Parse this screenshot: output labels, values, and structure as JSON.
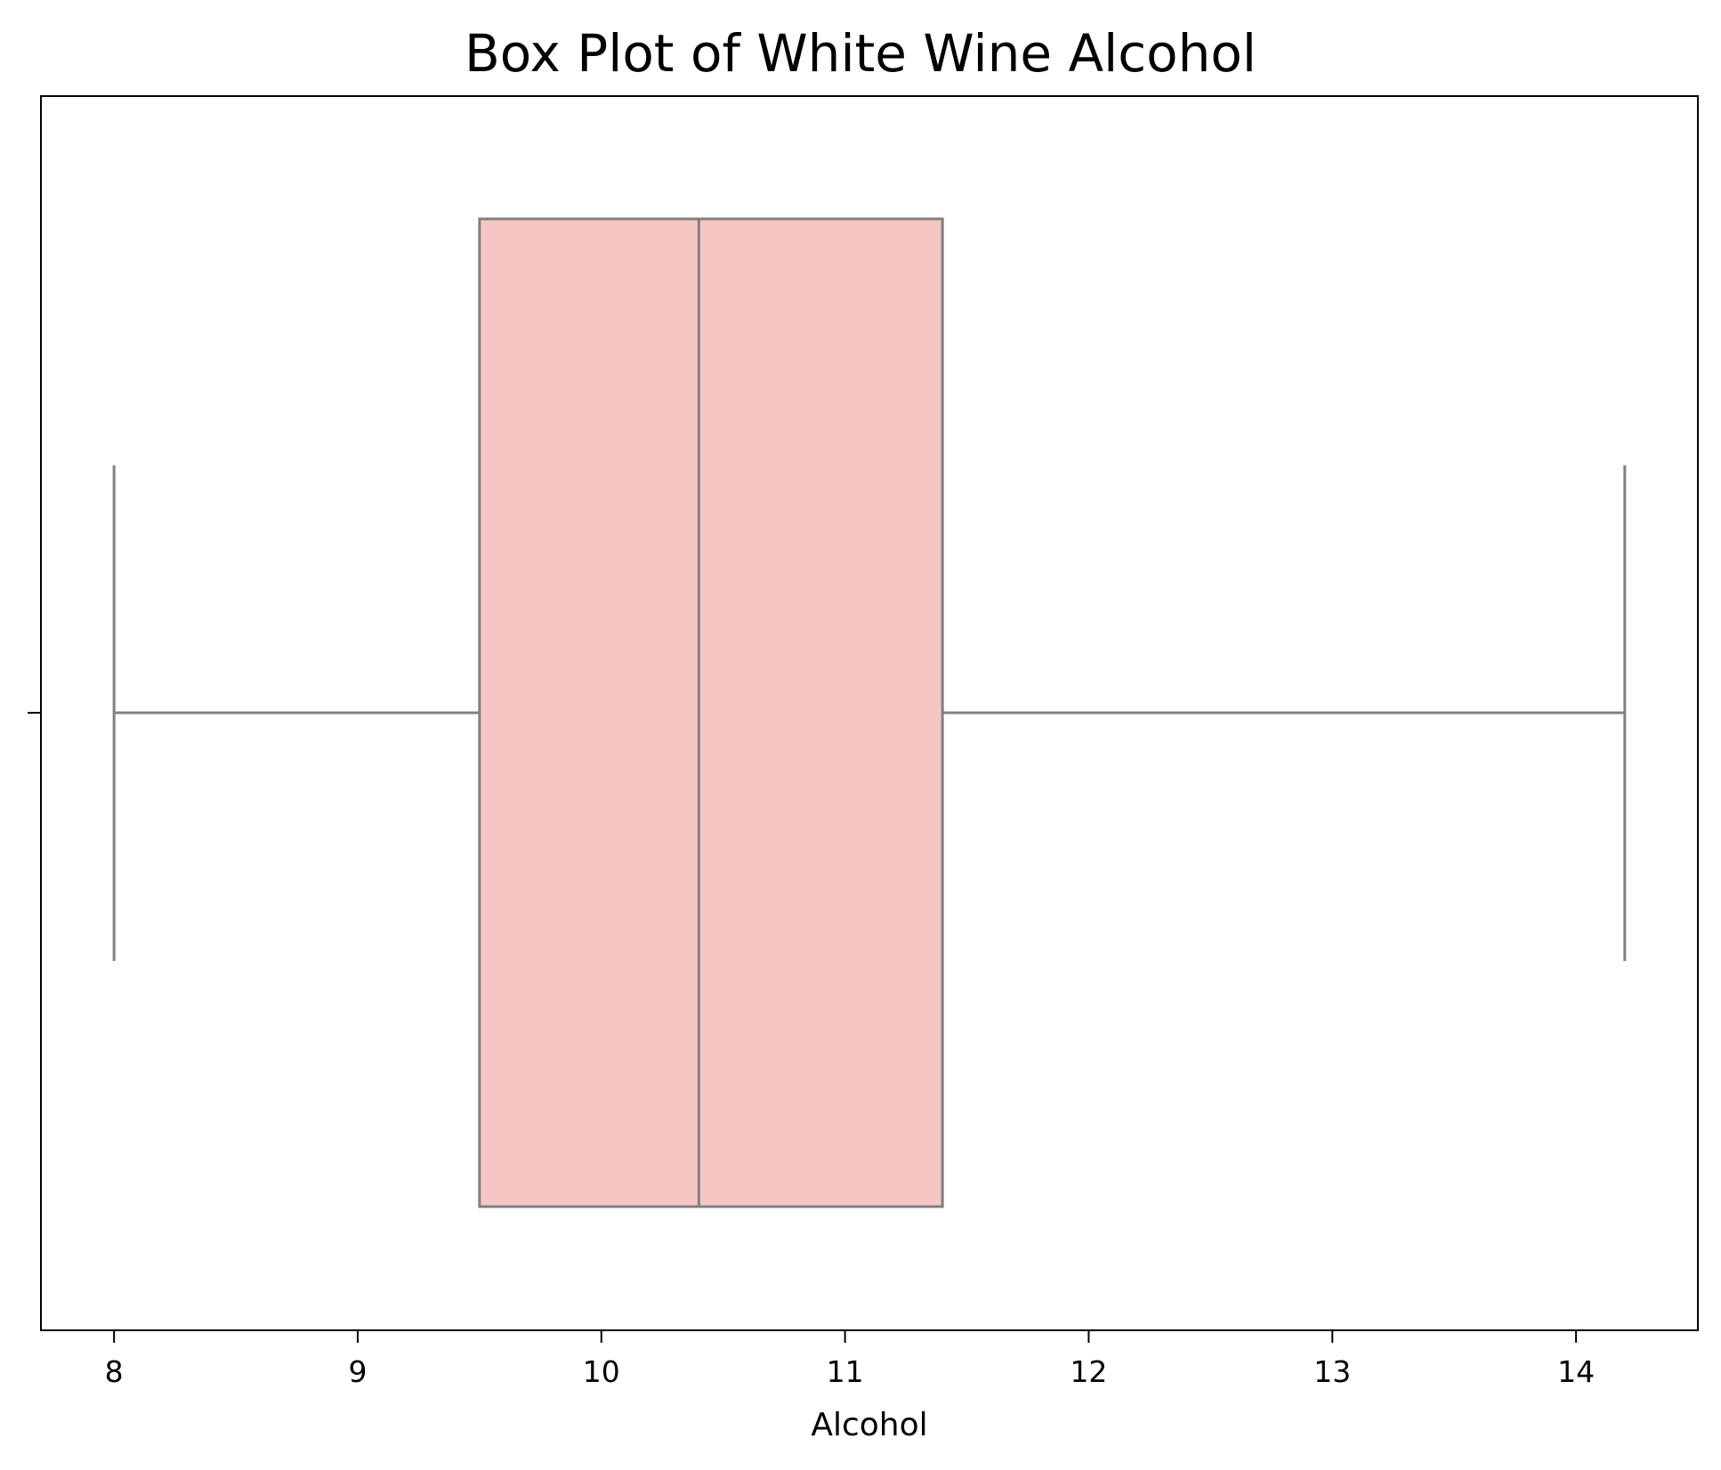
{
  "chart_data": {
    "type": "box",
    "title": "Box Plot of White Wine Alcohol",
    "xlabel": "Alcohol",
    "ylabel": "",
    "xlim": [
      7.7,
      14.5
    ],
    "xticks": [
      8,
      9,
      10,
      11,
      12,
      13,
      14
    ],
    "orientation": "horizontal",
    "grid": false,
    "box": {
      "whisker_low": 8.0,
      "q1": 9.5,
      "median": 10.4,
      "q3": 11.4,
      "whisker_high": 14.2
    },
    "colors": {
      "box_fill": "#f5c6c3",
      "box_line": "#808080",
      "axis": "#000000"
    }
  }
}
